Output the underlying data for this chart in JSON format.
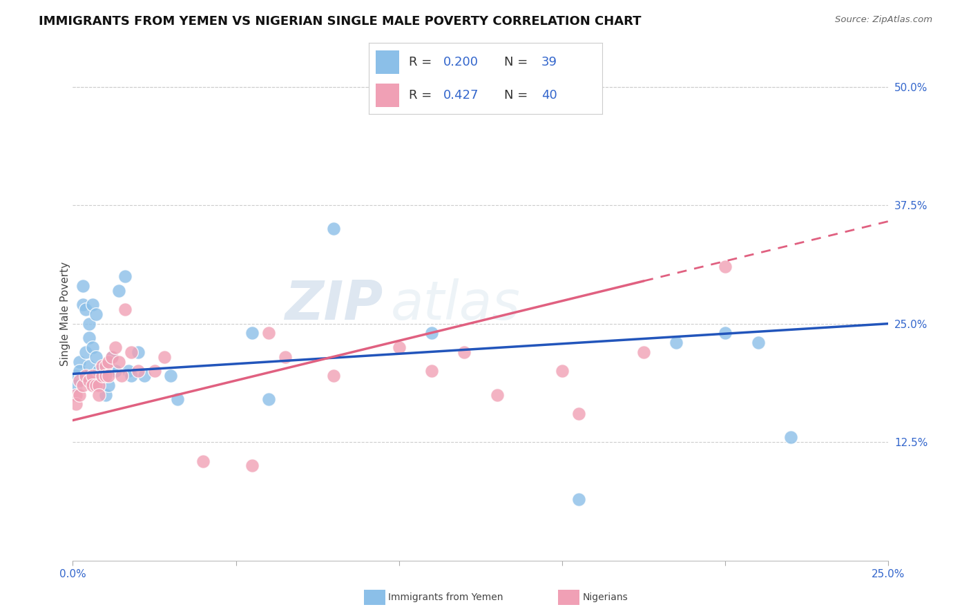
{
  "title": "IMMIGRANTS FROM YEMEN VS NIGERIAN SINGLE MALE POVERTY CORRELATION CHART",
  "source": "Source: ZipAtlas.com",
  "ylabel": "Single Male Poverty",
  "xlim": [
    0.0,
    0.25
  ],
  "ylim": [
    0.0,
    0.52
  ],
  "ytick_labels_right": [
    "12.5%",
    "25.0%",
    "37.5%",
    "50.0%"
  ],
  "ytick_positions_right": [
    0.125,
    0.25,
    0.375,
    0.5
  ],
  "color_yemen": "#8BBFE8",
  "color_nigeria": "#F0A0B5",
  "color_line_yemen": "#2255BB",
  "color_line_nigeria": "#E06080",
  "watermark_zip": "ZIP",
  "watermark_atlas": "atlas",
  "yemen_x": [
    0.001,
    0.001,
    0.002,
    0.002,
    0.003,
    0.003,
    0.004,
    0.004,
    0.005,
    0.005,
    0.005,
    0.006,
    0.006,
    0.007,
    0.007,
    0.008,
    0.009,
    0.01,
    0.011,
    0.011,
    0.012,
    0.013,
    0.014,
    0.016,
    0.017,
    0.018,
    0.02,
    0.022,
    0.03,
    0.032,
    0.055,
    0.06,
    0.08,
    0.11,
    0.155,
    0.185,
    0.2,
    0.21,
    0.22
  ],
  "yemen_y": [
    0.195,
    0.185,
    0.21,
    0.2,
    0.29,
    0.27,
    0.265,
    0.22,
    0.25,
    0.235,
    0.205,
    0.27,
    0.225,
    0.26,
    0.215,
    0.2,
    0.195,
    0.175,
    0.2,
    0.185,
    0.215,
    0.2,
    0.285,
    0.3,
    0.2,
    0.195,
    0.22,
    0.195,
    0.195,
    0.17,
    0.24,
    0.17,
    0.35,
    0.24,
    0.065,
    0.23,
    0.24,
    0.23,
    0.13
  ],
  "nigeria_x": [
    0.001,
    0.001,
    0.002,
    0.002,
    0.003,
    0.004,
    0.005,
    0.006,
    0.006,
    0.007,
    0.008,
    0.008,
    0.009,
    0.009,
    0.01,
    0.01,
    0.011,
    0.011,
    0.012,
    0.013,
    0.014,
    0.015,
    0.016,
    0.018,
    0.02,
    0.025,
    0.028,
    0.04,
    0.055,
    0.06,
    0.065,
    0.08,
    0.1,
    0.11,
    0.12,
    0.13,
    0.15,
    0.155,
    0.175,
    0.2
  ],
  "nigeria_y": [
    0.175,
    0.165,
    0.19,
    0.175,
    0.185,
    0.195,
    0.19,
    0.195,
    0.185,
    0.185,
    0.185,
    0.175,
    0.205,
    0.195,
    0.205,
    0.195,
    0.21,
    0.195,
    0.215,
    0.225,
    0.21,
    0.195,
    0.265,
    0.22,
    0.2,
    0.2,
    0.215,
    0.105,
    0.1,
    0.24,
    0.215,
    0.195,
    0.225,
    0.2,
    0.22,
    0.175,
    0.2,
    0.155,
    0.22,
    0.31
  ],
  "line_yemen_x0": 0.0,
  "line_yemen_y0": 0.197,
  "line_yemen_x1": 0.25,
  "line_yemen_y1": 0.25,
  "line_nigeria_solid_x0": 0.0,
  "line_nigeria_solid_y0": 0.148,
  "line_nigeria_solid_x1": 0.175,
  "line_nigeria_solid_y1": 0.295,
  "line_nigeria_dash_x0": 0.175,
  "line_nigeria_dash_y0": 0.295,
  "line_nigeria_dash_x1": 0.25,
  "line_nigeria_dash_y1": 0.358
}
